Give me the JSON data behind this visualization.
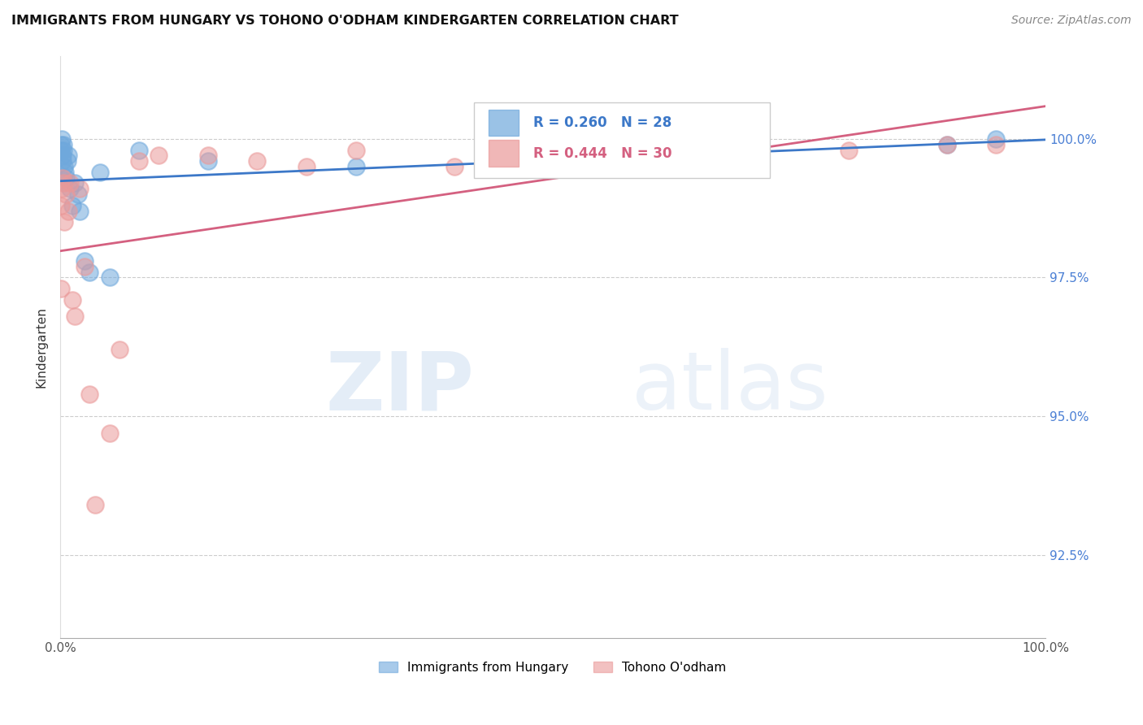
{
  "title": "IMMIGRANTS FROM HUNGARY VS TOHONO O'ODHAM KINDERGARTEN CORRELATION CHART",
  "source": "Source: ZipAtlas.com",
  "ylabel": "Kindergarten",
  "blue_label": "Immigrants from Hungary",
  "pink_label": "Tohono O'odham",
  "blue_R": 0.26,
  "blue_N": 28,
  "pink_R": 0.444,
  "pink_N": 30,
  "blue_color": "#6fa8dc",
  "pink_color": "#ea9999",
  "blue_line_color": "#3c78c8",
  "pink_line_color": "#d46080",
  "xlim": [
    0.0,
    100.0
  ],
  "ylim": [
    91.0,
    101.5
  ],
  "yticks": [
    92.5,
    95.0,
    97.5,
    100.0
  ],
  "xtick_positions": [
    0.0,
    20.0,
    40.0,
    60.0,
    80.0,
    100.0
  ],
  "xtick_labels": [
    "0.0%",
    "",
    "",
    "",
    "",
    "100.0%"
  ],
  "blue_x": [
    0.05,
    0.1,
    0.15,
    0.2,
    0.25,
    0.3,
    0.35,
    0.4,
    0.5,
    0.6,
    0.7,
    0.8,
    1.0,
    1.2,
    1.5,
    1.8,
    2.0,
    2.5,
    3.0,
    4.0,
    5.0,
    8.0,
    15.0,
    30.0,
    50.0,
    70.0,
    90.0,
    95.0
  ],
  "blue_y": [
    99.8,
    99.9,
    100.0,
    99.7,
    99.6,
    99.9,
    99.8,
    99.5,
    99.4,
    99.3,
    99.6,
    99.7,
    99.1,
    98.8,
    99.2,
    99.0,
    98.7,
    97.8,
    97.6,
    99.4,
    97.5,
    99.8,
    99.6,
    99.5,
    99.8,
    99.7,
    99.9,
    100.0
  ],
  "pink_x": [
    0.05,
    0.1,
    0.15,
    0.2,
    0.3,
    0.4,
    0.6,
    0.8,
    1.0,
    1.2,
    1.5,
    2.0,
    2.5,
    3.0,
    3.5,
    5.0,
    6.0,
    8.0,
    10.0,
    15.0,
    20.0,
    25.0,
    30.0,
    40.0,
    50.0,
    60.0,
    70.0,
    80.0,
    90.0,
    95.0
  ],
  "pink_y": [
    97.3,
    98.8,
    99.1,
    99.3,
    99.2,
    98.5,
    99.0,
    98.7,
    99.2,
    97.1,
    96.8,
    99.1,
    97.7,
    95.4,
    93.4,
    94.7,
    96.2,
    99.6,
    99.7,
    99.7,
    99.6,
    99.5,
    99.8,
    99.5,
    99.6,
    99.7,
    99.8,
    99.8,
    99.9,
    99.9
  ]
}
